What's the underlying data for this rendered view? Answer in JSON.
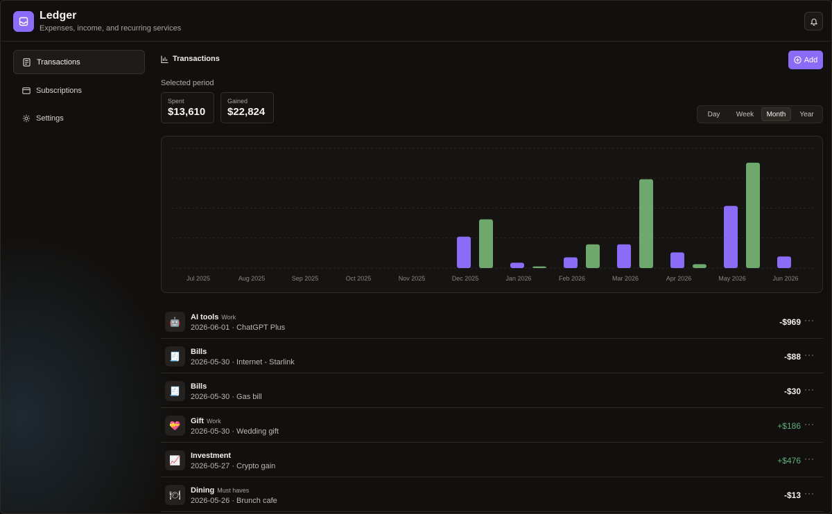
{
  "app": {
    "title": "Ledger",
    "subtitle": "Expenses, income, and recurring services"
  },
  "sidebar": {
    "items": [
      {
        "label": "Transactions",
        "icon": "receipt-icon",
        "active": true
      },
      {
        "label": "Subscriptions",
        "icon": "credit-card-icon",
        "active": false
      },
      {
        "label": "Settings",
        "icon": "gear-icon",
        "active": false
      }
    ]
  },
  "main": {
    "title": "Transactions",
    "add_label": "Add",
    "period_label": "Selected period",
    "spent_label": "Spent",
    "spent_value": "$13,610",
    "gained_label": "Gained",
    "gained_value": "$22,824",
    "ranges": [
      "Day",
      "Week",
      "Month",
      "Year"
    ],
    "active_range": "Month"
  },
  "colors": {
    "accent": "#8b6cf6",
    "spent": "#8b6cf6",
    "gained": "#6fa86d",
    "positive_text": "#5eb07a"
  },
  "chart_data": {
    "type": "bar",
    "categories": [
      "Jul 2025",
      "Aug 2025",
      "Sep 2025",
      "Oct 2025",
      "Nov 2025",
      "Dec 2025",
      "Jan 2026",
      "Feb 2026",
      "Mar 2026",
      "Apr 2026",
      "May 2026",
      "Jun 2026"
    ],
    "series": [
      {
        "key": "spent",
        "values": [
          0,
          0,
          0,
          0,
          0,
          1520,
          260,
          520,
          1150,
          760,
          3010,
          560
        ]
      },
      {
        "key": "gained",
        "values": [
          0,
          0,
          0,
          0,
          0,
          2360,
          80,
          1150,
          4300,
          190,
          5100,
          0
        ]
      }
    ],
    "ylim": [
      0,
      5800
    ],
    "grid": true
  },
  "transactions": [
    {
      "icon": "robot-icon",
      "glyph": "🤖",
      "category": "AI tools",
      "tag": "Work",
      "desc": "2026-06-01 · ChatGPT Plus",
      "amount": "-$969",
      "positive": false
    },
    {
      "icon": "receipt-icon",
      "glyph": "🧾",
      "category": "Bills",
      "tag": "",
      "desc": "2026-05-30 · Internet - Starlink",
      "amount": "-$88",
      "positive": false
    },
    {
      "icon": "receipt-icon",
      "glyph": "🧾",
      "category": "Bills",
      "tag": "",
      "desc": "2026-05-30 · Gas bill",
      "amount": "-$30",
      "positive": false
    },
    {
      "icon": "gift-heart-icon",
      "glyph": "💝",
      "category": "Gift",
      "tag": "Work",
      "desc": "2026-05-30 · Wedding gift",
      "amount": "+$186",
      "positive": true
    },
    {
      "icon": "chart-up-icon",
      "glyph": "📈",
      "category": "Investment",
      "tag": "",
      "desc": "2026-05-27 · Crypto gain",
      "amount": "+$476",
      "positive": true
    },
    {
      "icon": "plate-icon",
      "glyph": "🍽",
      "category": "Dining",
      "tag": "Must haves",
      "desc": "2026-05-26 · Brunch cafe",
      "amount": "-$13",
      "positive": false
    }
  ]
}
